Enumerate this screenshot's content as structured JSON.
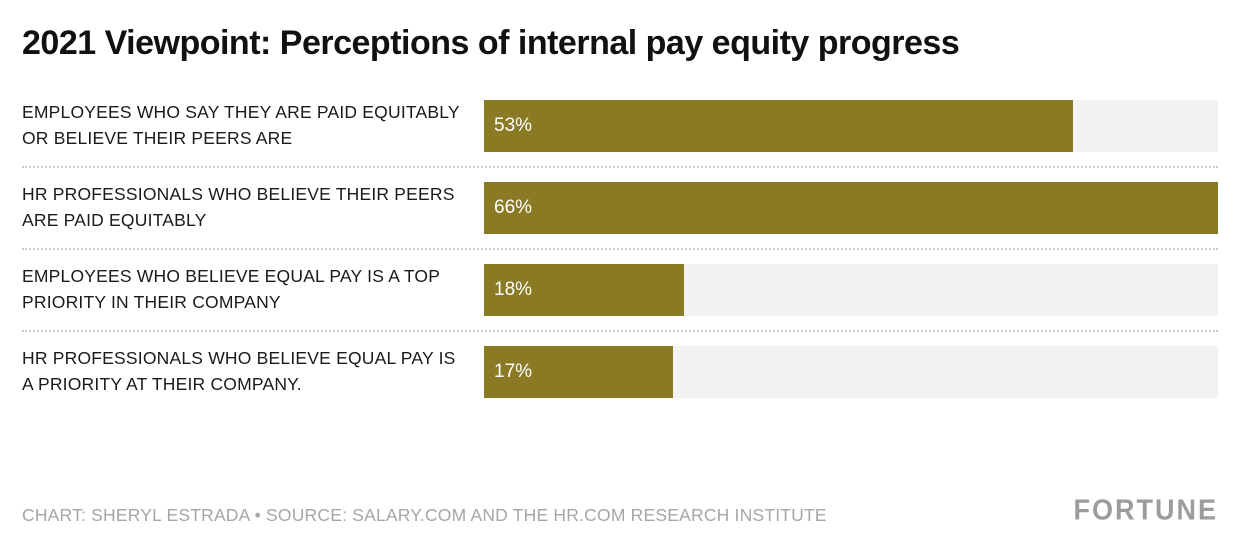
{
  "chart_data": {
    "type": "bar",
    "orientation": "horizontal",
    "title": "2021 Viewpoint: Perceptions of internal pay equity progress",
    "categories": [
      "EMPLOYEES WHO SAY THEY ARE PAID EQUITABLY OR BELIEVE THEIR PEERS ARE",
      "HR PROFESSIONALS WHO BELIEVE THEIR PEERS ARE PAID EQUITABLY",
      "EMPLOYEES WHO BELIEVE EQUAL PAY IS A TOP PRIORITY IN THEIR COMPANY",
      "HR PROFESSIONALS WHO BELIEVE EQUAL PAY IS A PRIORITY AT THEIR COMPANY."
    ],
    "values": [
      53,
      66,
      18,
      17
    ],
    "value_suffix": "%",
    "xlim": [
      0,
      66
    ],
    "bar_color": "#8a7a24",
    "track_color": "#f2f2f2",
    "legend": "none",
    "grid": "off"
  },
  "footer": {
    "credit": "CHART: SHERYL ESTRADA • SOURCE: SALARY.COM AND THE HR.COM RESEARCH INSTITUTE",
    "logo": "FORTUNE"
  }
}
